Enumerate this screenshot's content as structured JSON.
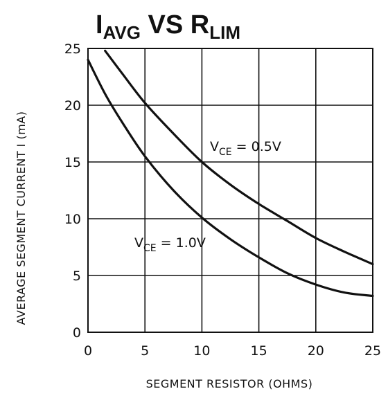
{
  "chart_data": {
    "type": "line",
    "title": {
      "main1": "I",
      "sub1": "AVG",
      "mid": " VS ",
      "main2": "R",
      "sub2": "LIM"
    },
    "xlabel": "SEGMENT RESISTOR (OHMS)",
    "ylabel": "AVERAGE SEGMENT CURRENT I (mA)",
    "xlim": [
      0,
      25
    ],
    "ylim": [
      0,
      25
    ],
    "xticks": [
      0,
      5,
      10,
      15,
      20,
      25
    ],
    "yticks": [
      0,
      5,
      10,
      15,
      20,
      25
    ],
    "grid": true,
    "series": [
      {
        "label_main": "V",
        "label_sub": "CE",
        "label_value": " = 0.5V",
        "x": [
          1.5,
          3,
          5,
          7.5,
          10,
          12.5,
          15,
          17.5,
          20,
          22.5,
          25
        ],
        "y": [
          24.8,
          22.8,
          20.2,
          17.5,
          15.0,
          13.0,
          11.3,
          9.8,
          8.3,
          7.1,
          6.0
        ]
      },
      {
        "label_main": "V",
        "label_sub": "CE",
        "label_value": " = 1.0V",
        "x": [
          0,
          1.5,
          3,
          5,
          7.5,
          10,
          12.5,
          15,
          17.5,
          20,
          22.5,
          25
        ],
        "y": [
          24.0,
          21.0,
          18.5,
          15.5,
          12.5,
          10.1,
          8.2,
          6.6,
          5.2,
          4.2,
          3.5,
          3.2
        ]
      }
    ]
  }
}
